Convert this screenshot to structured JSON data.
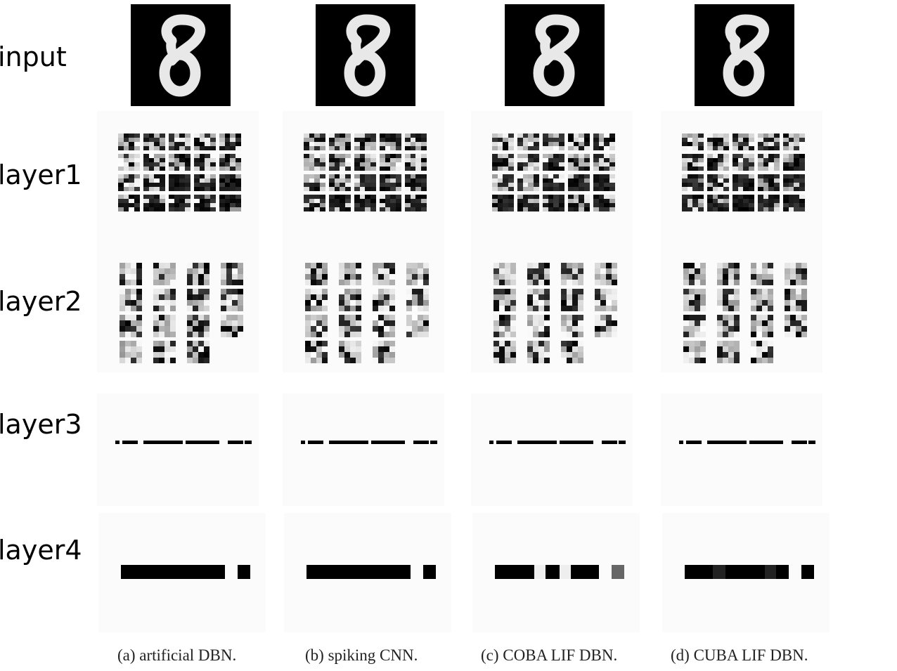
{
  "row_labels": [
    "input",
    "layer1",
    "layer2",
    "layer3",
    "layer4"
  ],
  "captions": [
    "(a) artificial DBN.",
    "(b) spiking CNN.",
    "(c) COBA LIF DBN.",
    "(d) CUBA LIF DBN."
  ],
  "colors": {
    "background": "#ffffff",
    "figure_ink": "#000000",
    "panel_background": "#fbfbfb"
  }
}
